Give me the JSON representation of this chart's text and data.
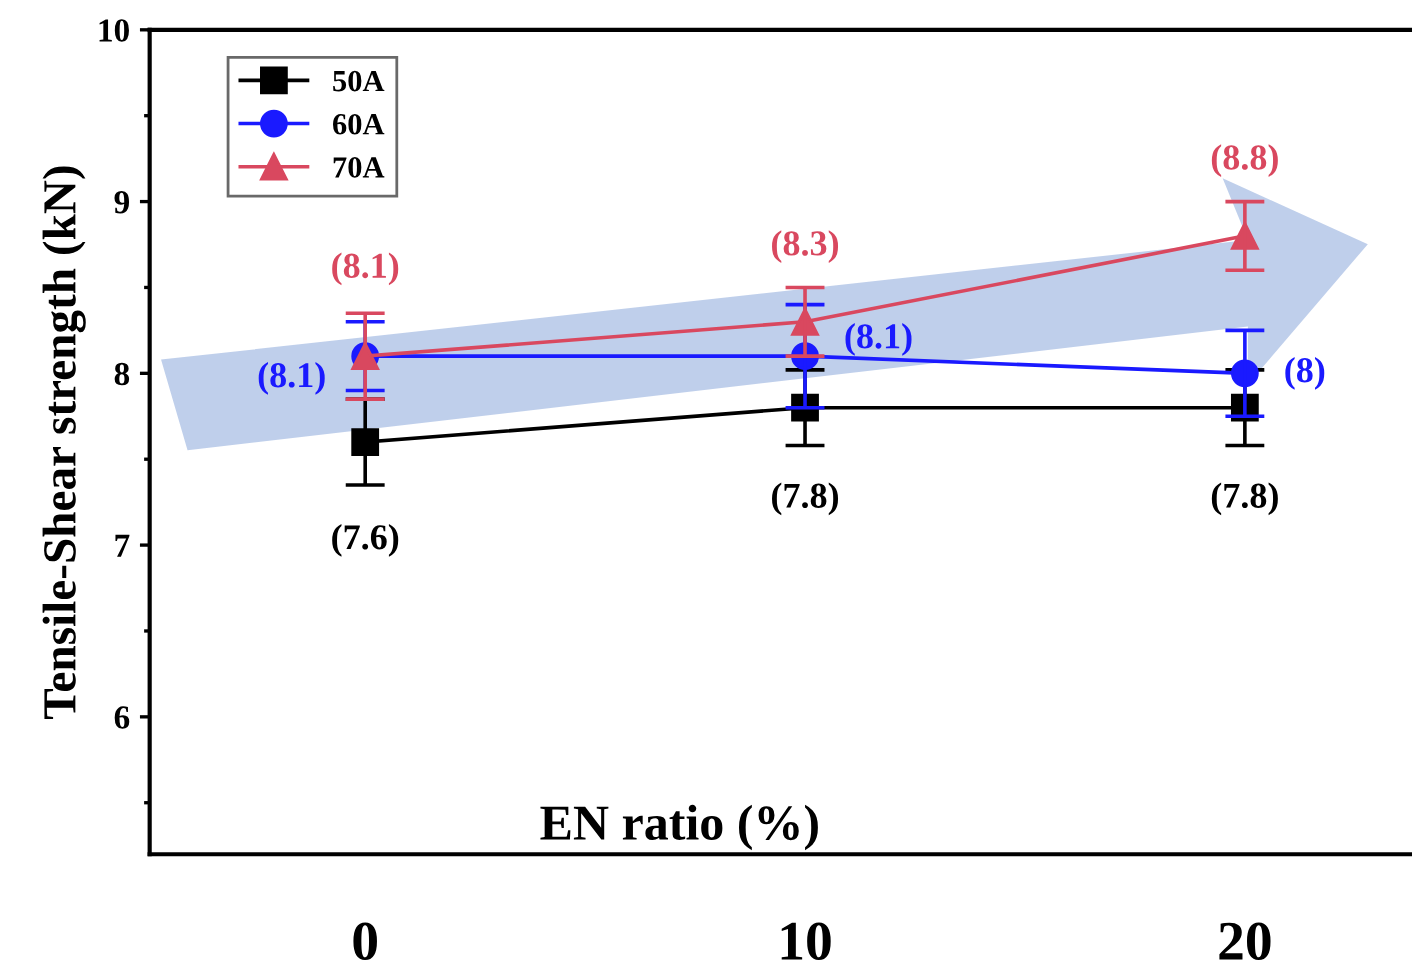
{
  "chart_data": {
    "type": "line",
    "xlabel": "EN ratio (%)",
    "ylabel": "Tensile-Shear strength (kN)",
    "x": [
      0,
      10,
      20
    ],
    "xlim": [
      -4.9,
      23.8
    ],
    "xticks": [
      0,
      10,
      20
    ],
    "ylim": [
      5.2,
      10
    ],
    "yticks": [
      6,
      7,
      8,
      9,
      10
    ],
    "legend": "top left",
    "grid": false,
    "series": [
      {
        "name": "50A",
        "color": "#000000",
        "marker": "square",
        "values": [
          7.6,
          7.8,
          7.8
        ],
        "errors": [
          0.25,
          0.22,
          0.22
        ],
        "value_labels": [
          "(7.6)",
          "(7.8)",
          "(7.8)"
        ]
      },
      {
        "name": "60A",
        "color": "#1a1aff",
        "marker": "circle",
        "values": [
          8.1,
          8.1,
          8.0
        ],
        "errors": [
          0.2,
          0.3,
          0.25
        ],
        "value_labels": [
          "(8.1)",
          "(8.1)",
          "(8)"
        ]
      },
      {
        "name": "70A",
        "color": "#d9485f",
        "marker": "triangle",
        "values": [
          8.1,
          8.3,
          8.8
        ],
        "errors": [
          0.25,
          0.2,
          0.2
        ],
        "value_labels": [
          "(8.1)",
          "(8.3)",
          "(8.8)"
        ]
      }
    ]
  }
}
